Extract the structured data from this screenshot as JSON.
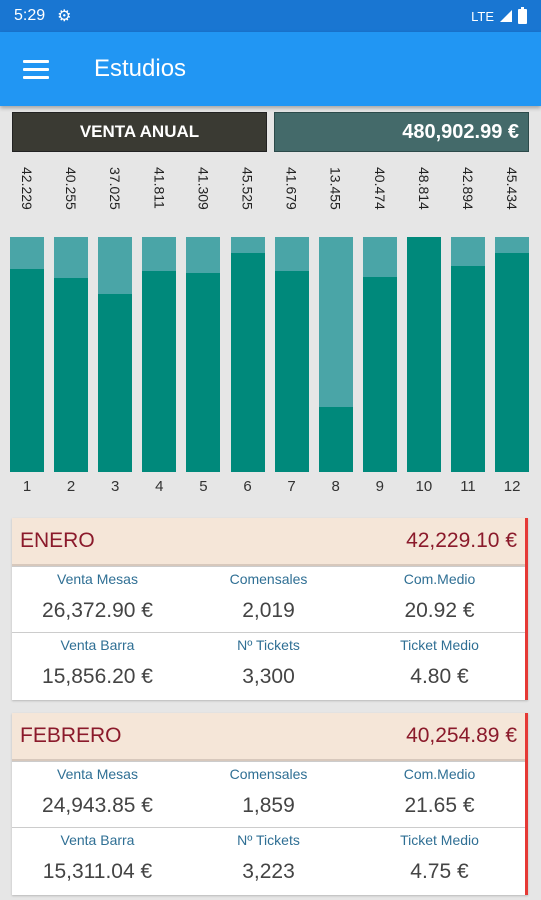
{
  "status": {
    "time": "5:29",
    "network": "LTE"
  },
  "app_bar": {
    "title": "Estudios"
  },
  "summary": {
    "label": "VENTA  ANUAL",
    "value": "480,902.99 €"
  },
  "chart_data": {
    "type": "bar",
    "categories": [
      "1",
      "2",
      "3",
      "4",
      "5",
      "6",
      "7",
      "8",
      "9",
      "10",
      "11",
      "12"
    ],
    "value_labels": [
      "42.229",
      "40.255",
      "37.025",
      "41.811",
      "41.309",
      "45.525",
      "41.679",
      "13.455",
      "40.474",
      "48.814",
      "42.894",
      "45.434"
    ],
    "values": [
      42229,
      40255,
      37025,
      41811,
      41309,
      45525,
      41679,
      13455,
      40474,
      48814,
      42894,
      45434
    ],
    "ylim": [
      0,
      48814
    ]
  },
  "months": [
    {
      "name": "ENERO",
      "total": "42,229.10 €",
      "labels": [
        "Venta Mesas",
        "Comensales",
        "Com.Medio",
        "Venta Barra",
        "Nº Tickets",
        "Ticket Medio"
      ],
      "values": [
        "26,372.90 €",
        "2,019",
        "20.92 €",
        "15,856.20 €",
        "3,300",
        "4.80 €"
      ]
    },
    {
      "name": "FEBRERO",
      "total": "40,254.89 €",
      "labels": [
        "Venta Mesas",
        "Comensales",
        "Com.Medio",
        "Venta Barra",
        "Nº Tickets",
        "Ticket Medio"
      ],
      "values": [
        "24,943.85 €",
        "1,859",
        "21.65 €",
        "15,311.04 €",
        "3,223",
        "4.75 €"
      ]
    }
  ]
}
